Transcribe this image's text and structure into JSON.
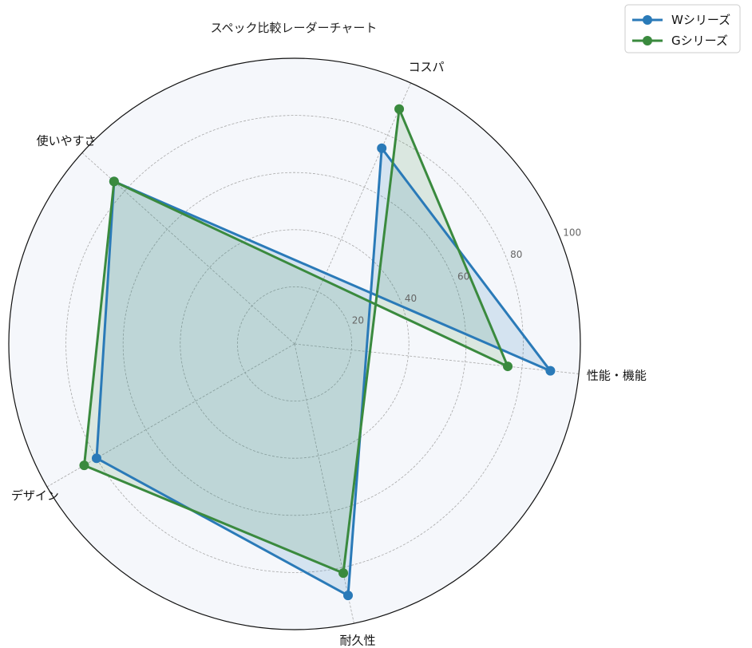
{
  "chart_data": {
    "type": "radar",
    "title": "スペック比較レーダーチャート",
    "categories": [
      "性能・機能",
      "コスパ",
      "耐久性",
      "デザイン",
      "使いやすさ"
    ],
    "rlim": [
      0,
      100
    ],
    "rticks": [
      20,
      40,
      60,
      80,
      100
    ],
    "grid": true,
    "legend": "top-right",
    "series": [
      {
        "name": "Wシリーズ",
        "values": [
          90,
          75,
          90,
          80,
          85
        ],
        "color": "#2a7ab8"
      },
      {
        "name": "Gシリーズ",
        "values": [
          75,
          90,
          82,
          85,
          85
        ],
        "color": "#3a8a3e"
      }
    ],
    "background_color": "#f5f7fb"
  }
}
